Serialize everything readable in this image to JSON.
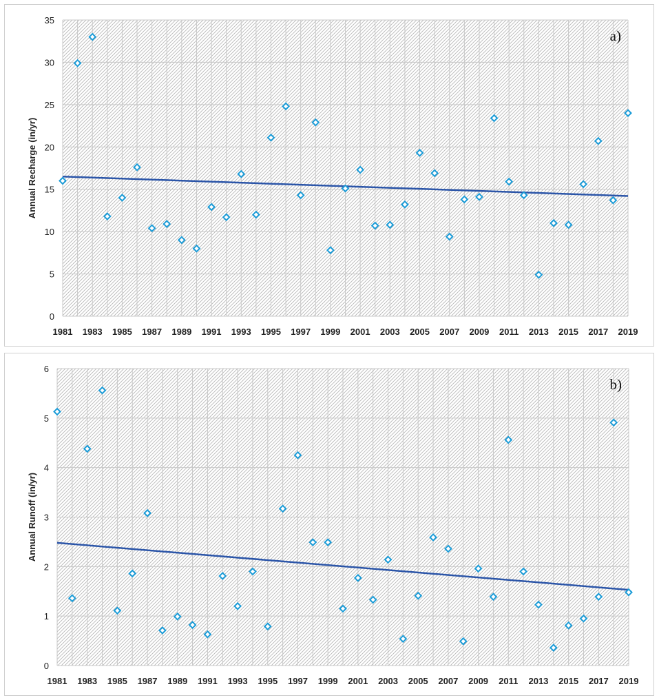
{
  "chart_data": [
    {
      "type": "scatter",
      "panel_label": "a)",
      "ylabel": "Annual Recharge (in/yr)",
      "xlabel": "",
      "ylim": [
        0,
        35
      ],
      "yticks": [
        0,
        5,
        10,
        15,
        20,
        25,
        30,
        35
      ],
      "xlim": [
        1981,
        2019
      ],
      "xtick_labels": [
        "1981",
        "1983",
        "1985",
        "1987",
        "1989",
        "1991",
        "1993",
        "1995",
        "1997",
        "1999",
        "2001",
        "2003",
        "2005",
        "2007",
        "2009",
        "2011",
        "2013",
        "2015",
        "2017",
        "2019"
      ],
      "x": [
        1981,
        1982,
        1983,
        1984,
        1985,
        1986,
        1987,
        1988,
        1989,
        1990,
        1991,
        1992,
        1993,
        1994,
        1995,
        1996,
        1997,
        1998,
        1999,
        2000,
        2001,
        2002,
        2003,
        2004,
        2005,
        2006,
        2007,
        2008,
        2009,
        2010,
        2011,
        2012,
        2013,
        2014,
        2015,
        2016,
        2017,
        2018,
        2019
      ],
      "values": [
        16.0,
        29.9,
        33.0,
        11.8,
        14.0,
        17.6,
        10.4,
        10.9,
        9.0,
        8.0,
        12.9,
        11.7,
        16.8,
        12.0,
        21.1,
        24.8,
        14.3,
        22.9,
        7.8,
        15.1,
        17.3,
        10.7,
        10.8,
        13.2,
        19.3,
        16.9,
        9.4,
        13.8,
        14.1,
        23.4,
        15.9,
        14.3,
        4.9,
        11.0,
        10.8,
        15.6,
        20.7,
        13.7,
        24.0
      ],
      "trendline": {
        "x": [
          1981,
          2019
        ],
        "y": [
          16.5,
          14.2
        ]
      },
      "colors": {
        "marker": "#1a9bd7",
        "trend": "#2b55a8",
        "grid": "#c8c8c8",
        "hatch": "#b4b4b4"
      }
    },
    {
      "type": "scatter",
      "panel_label": "b)",
      "ylabel": "Annual Runoff (in/yr)",
      "xlabel": "",
      "ylim": [
        0,
        6
      ],
      "yticks": [
        0,
        1,
        2,
        3,
        4,
        5,
        6
      ],
      "xlim": [
        1981,
        2019
      ],
      "xtick_labels": [
        "1981",
        "1983",
        "1985",
        "1987",
        "1989",
        "1991",
        "1993",
        "1995",
        "1997",
        "1999",
        "2001",
        "2003",
        "2005",
        "2007",
        "2009",
        "2011",
        "2013",
        "2015",
        "2017",
        "2019"
      ],
      "x": [
        1981,
        1982,
        1983,
        1984,
        1985,
        1986,
        1987,
        1988,
        1989,
        1990,
        1991,
        1992,
        1993,
        1994,
        1995,
        1996,
        1997,
        1998,
        1999,
        2000,
        2001,
        2002,
        2003,
        2004,
        2005,
        2006,
        2007,
        2008,
        2009,
        2010,
        2011,
        2012,
        2013,
        2014,
        2015,
        2016,
        2017,
        2018,
        2019
      ],
      "values": [
        5.13,
        1.36,
        4.38,
        5.56,
        1.11,
        1.86,
        3.08,
        0.71,
        0.99,
        0.82,
        0.63,
        1.81,
        1.2,
        1.9,
        0.79,
        3.17,
        4.25,
        2.49,
        2.49,
        1.15,
        1.77,
        1.33,
        2.14,
        0.54,
        1.41,
        2.59,
        2.36,
        0.49,
        1.96,
        1.39,
        4.56,
        1.9,
        1.23,
        0.36,
        0.81,
        0.95,
        1.39,
        4.91,
        1.48
      ],
      "trendline": {
        "x": [
          1981,
          2019
        ],
        "y": [
          2.48,
          1.53
        ]
      },
      "colors": {
        "marker": "#1a9bd7",
        "trend": "#2b55a8",
        "grid": "#c8c8c8",
        "hatch": "#b4b4b4"
      }
    }
  ]
}
